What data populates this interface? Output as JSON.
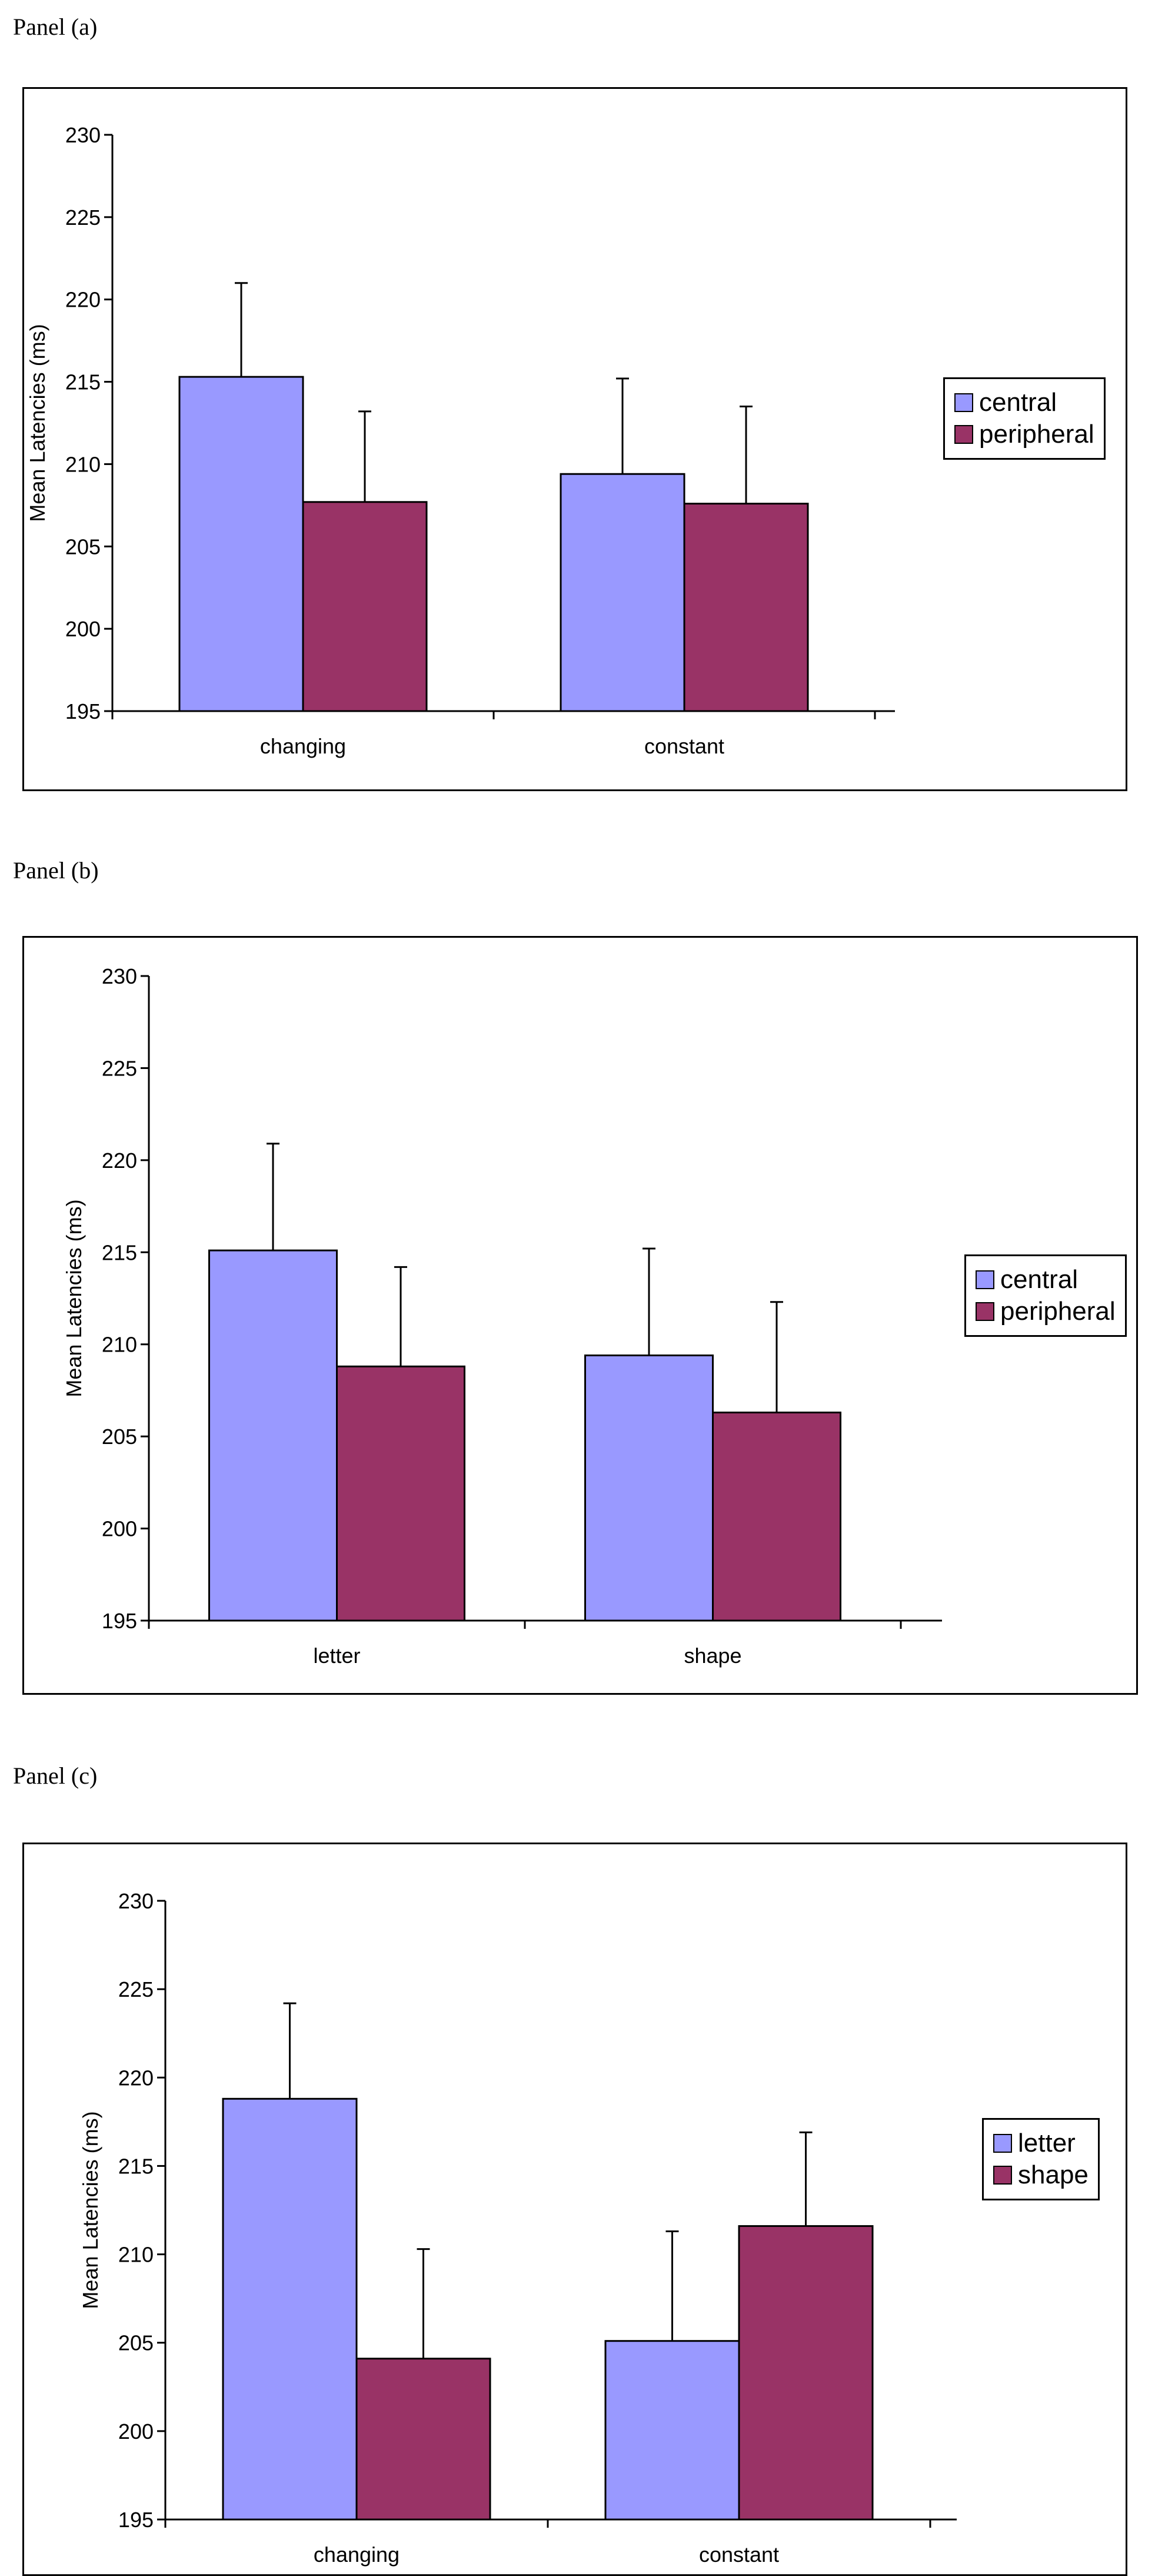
{
  "colors": {
    "series_1": "#9999ff",
    "series_2": "#993366"
  },
  "panels": [
    {
      "caption": "Panel (a)"
    },
    {
      "caption": "Panel (b)"
    },
    {
      "caption": "Panel (c)"
    }
  ],
  "chart_data": [
    {
      "type": "bar",
      "panel": "Panel (a)",
      "ylabel": "Mean Latencies (ms)",
      "ylim": [
        195,
        230
      ],
      "yticks": [
        195,
        200,
        205,
        210,
        215,
        220,
        225,
        230
      ],
      "categories": [
        "changing",
        "constant"
      ],
      "series": [
        {
          "name": "central",
          "values": [
            215.3,
            209.4
          ],
          "errors": [
            5.7,
            5.8
          ]
        },
        {
          "name": "peripheral",
          "values": [
            207.7,
            207.6
          ],
          "errors": [
            5.5,
            5.9
          ]
        }
      ],
      "legend": "right"
    },
    {
      "type": "bar",
      "panel": "Panel (b)",
      "ylabel": "Mean Latencies (ms)",
      "ylim": [
        195,
        230
      ],
      "yticks": [
        195,
        200,
        205,
        210,
        215,
        220,
        225,
        230
      ],
      "categories": [
        "letter",
        "shape"
      ],
      "series": [
        {
          "name": "central",
          "values": [
            215.1,
            209.4
          ],
          "errors": [
            5.8,
            5.8
          ]
        },
        {
          "name": "peripheral",
          "values": [
            208.8,
            206.3
          ],
          "errors": [
            5.4,
            6.0
          ]
        }
      ],
      "legend": "right"
    },
    {
      "type": "bar",
      "panel": "Panel (c)",
      "ylabel": "Mean Latencies (ms)",
      "ylim": [
        195,
        230
      ],
      "yticks": [
        195,
        200,
        205,
        210,
        215,
        220,
        225,
        230
      ],
      "categories": [
        "changing",
        "constant"
      ],
      "series": [
        {
          "name": "letter",
          "values": [
            218.8,
            205.1
          ],
          "errors": [
            5.4,
            6.2
          ]
        },
        {
          "name": "shape",
          "values": [
            204.1,
            211.6
          ],
          "errors": [
            6.2,
            5.3
          ]
        }
      ],
      "legend": "right"
    }
  ]
}
